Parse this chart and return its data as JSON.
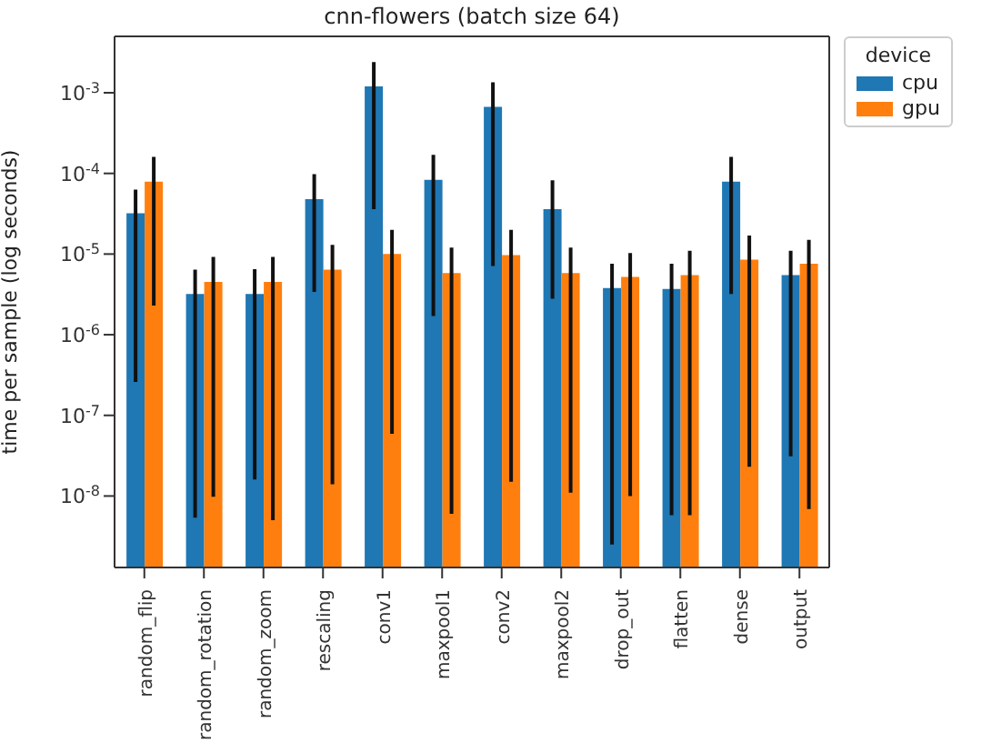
{
  "chart_data": {
    "type": "bar",
    "title": "cnn-flowers (batch size 64)",
    "ylabel": "time per sample (log seconds)",
    "legend_title": "device",
    "legend": "top right",
    "log": true,
    "grid": false,
    "categories": [
      "random_flip",
      "random_rotation",
      "random_zoom",
      "rescaling",
      "conv1",
      "maxpool1",
      "conv2",
      "maxpool2",
      "drop_out",
      "flatten",
      "dense",
      "output"
    ],
    "ylim": [
      1.3e-09,
      0.005
    ],
    "yticks": [
      {
        "value": 1e-08,
        "label": "10$^{-8}$"
      },
      {
        "value": 1e-07,
        "label": "10$^{-7}$"
      },
      {
        "value": 1e-06,
        "label": "10$^{-6}$"
      },
      {
        "value": 1e-05,
        "label": "10$^{-5}$"
      },
      {
        "value": 0.0001,
        "label": "10$^{-4}$"
      },
      {
        "value": 0.001,
        "label": "10$^{-3}$"
      }
    ],
    "series": [
      {
        "name": "cpu",
        "color": "#1f77b4",
        "values": [
          3.2e-05,
          3.2e-06,
          3.2e-06,
          4.8e-05,
          0.0012,
          8.3e-05,
          0.00067,
          3.6e-05,
          3.8e-06,
          3.7e-06,
          7.9e-05,
          5.5e-06
        ],
        "errors": [
          [
            2.6e-07,
            6.3e-05
          ],
          [
            5.4e-09,
            6.4e-06
          ],
          [
            1.6e-08,
            6.5e-06
          ],
          [
            3.4e-06,
            9.8e-05
          ],
          [
            3.6e-05,
            0.0024
          ],
          [
            1.7e-06,
            0.00017
          ],
          [
            7.1e-06,
            0.00135
          ],
          [
            2.8e-06,
            8.2e-05
          ],
          [
            2.5e-09,
            7.6e-06
          ],
          [
            5.8e-09,
            7.6e-06
          ],
          [
            3.2e-06,
            0.00016
          ],
          [
            3.1e-08,
            1.1e-05
          ]
        ]
      },
      {
        "name": "gpu",
        "color": "#ff7f0e",
        "values": [
          7.9e-05,
          4.5e-06,
          4.5e-06,
          6.4e-06,
          1e-05,
          5.8e-06,
          9.7e-06,
          5.8e-06,
          5.2e-06,
          5.5e-06,
          8.5e-06,
          7.6e-06
        ],
        "errors": [
          [
            2.3e-06,
            0.00016
          ],
          [
            9.8e-09,
            9.2e-06
          ],
          [
            5e-09,
            9.2e-06
          ],
          [
            1.4e-08,
            1.3e-05
          ],
          [
            5.9e-08,
            2e-05
          ],
          [
            6e-09,
            1.2e-05
          ],
          [
            1.5e-08,
            2e-05
          ],
          [
            1.1e-08,
            1.2e-05
          ],
          [
            1e-08,
            1.03e-05
          ],
          [
            5.8e-09,
            1.1e-05
          ],
          [
            2.3e-08,
            1.7e-05
          ],
          [
            6.9e-09,
            1.5e-05
          ]
        ]
      }
    ]
  }
}
